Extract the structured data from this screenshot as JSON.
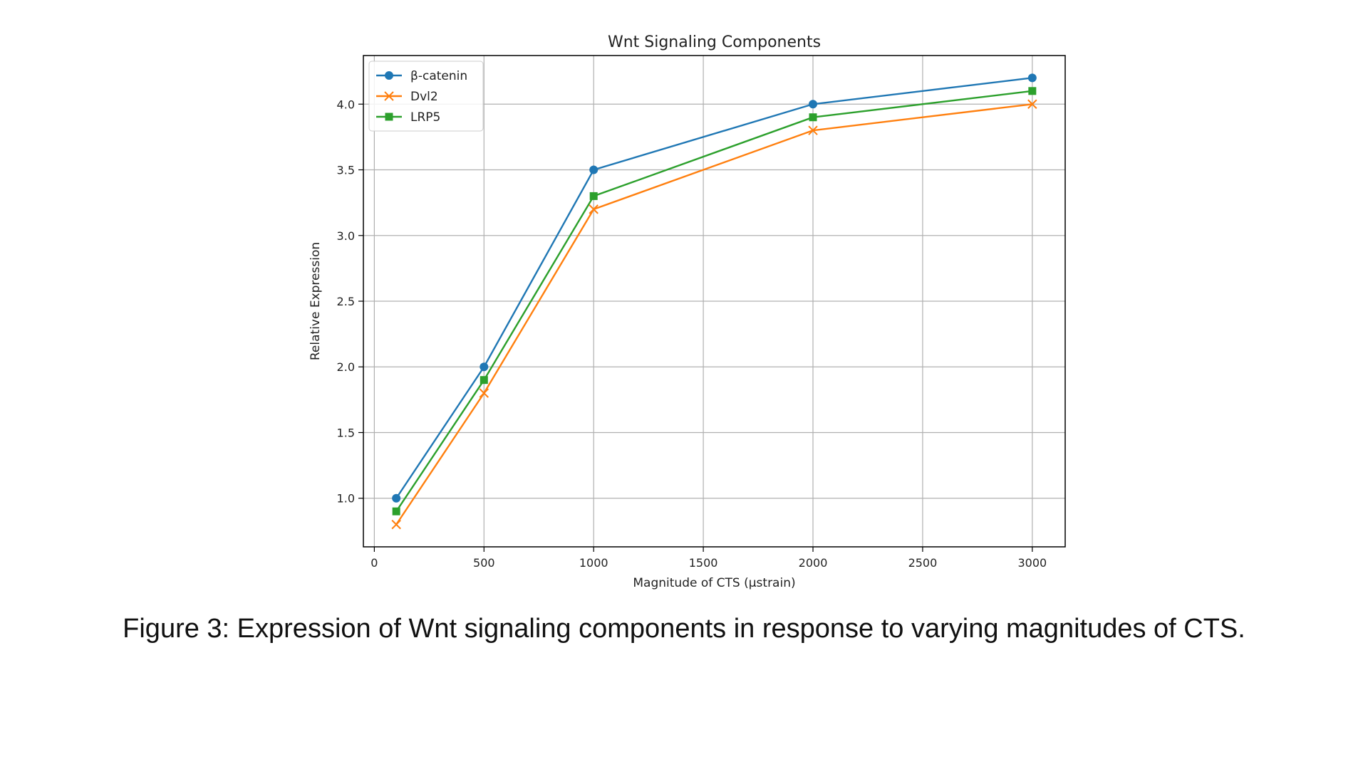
{
  "caption": "Figure 3: Expression of Wnt signaling components in response to varying magnitudes of CTS.",
  "chart_data": {
    "type": "line",
    "title": "Wnt Signaling Components",
    "xlabel": "Magnitude of CTS (µstrain)",
    "ylabel": "Relative Expression",
    "x": [
      100,
      500,
      1000,
      2000,
      3000
    ],
    "xlim": [
      -50,
      3150
    ],
    "ylim": [
      0.63,
      4.37
    ],
    "xticks": [
      0,
      500,
      1000,
      1500,
      2000,
      2500,
      3000
    ],
    "yticks": [
      1.0,
      1.5,
      2.0,
      2.5,
      3.0,
      3.5,
      4.0
    ],
    "grid": true,
    "legend_position": "top-left",
    "series": [
      {
        "name": "β-catenin",
        "values": [
          1.0,
          2.0,
          3.5,
          4.0,
          4.2
        ],
        "color": "#1f77b4",
        "marker": "circle"
      },
      {
        "name": "Dvl2",
        "values": [
          0.8,
          1.8,
          3.2,
          3.8,
          4.0
        ],
        "color": "#ff7f0e",
        "marker": "x"
      },
      {
        "name": "LRP5",
        "values": [
          0.9,
          1.9,
          3.3,
          3.9,
          4.1
        ],
        "color": "#2ca02c",
        "marker": "square"
      }
    ]
  }
}
